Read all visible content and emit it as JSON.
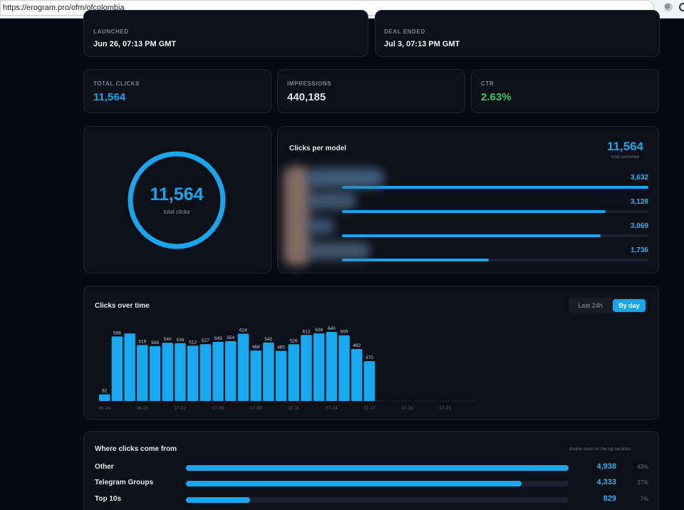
{
  "browser": {
    "url": "https://erogram.pro/ofm/ofcolombia"
  },
  "meta": {
    "launched_label": "LAUNCHED",
    "launched_value": "Jun 26, 07:13 PM GMT",
    "ended_label": "DEAL ENDED",
    "ended_value": "Jul 3, 07:13 PM GMT"
  },
  "stats": {
    "clicks_label": "TOTAL CLICKS",
    "clicks_value": "11,564",
    "impressions_label": "IMPRESSIONS",
    "impressions_value": "440,185",
    "ctr_label": "CTR",
    "ctr_value": "2.63%"
  },
  "ring": {
    "value": "11,564",
    "caption": "total clicks"
  },
  "models": {
    "title": "Clicks per model",
    "total": "11,564",
    "total_caption": "total combined",
    "items": [
      {
        "value": "3,632",
        "fraction": 1.0
      },
      {
        "value": "3,128",
        "fraction": 0.861
      },
      {
        "value": "3,069",
        "fraction": 0.845
      },
      {
        "value": "1,736",
        "fraction": 0.478
      }
    ]
  },
  "timeline": {
    "title": "Clicks over time",
    "toggle": {
      "option_a": "Last 24h",
      "option_b": "By day",
      "selected": "By day"
    }
  },
  "chart_data": {
    "type": "bar",
    "categories": [
      "06-26",
      "06-27",
      "06-28",
      "06-29",
      "06-30",
      "07-01",
      "07-02",
      "07-03",
      "07-04",
      "07-05",
      "07-06",
      "07-07",
      "07-08",
      "07-09",
      "07-10",
      "07-11",
      "07-12",
      "07-13",
      "07-14",
      "07-15",
      "07-16",
      "07-17",
      "07-18",
      "07-19",
      "07-20",
      "07-21",
      "07-22",
      "07-23",
      "07-24",
      "07-25"
    ],
    "values": [
      62,
      598,
      626,
      519,
      508,
      540,
      536,
      512,
      527,
      549,
      554,
      624,
      468,
      542,
      465,
      526,
      612,
      626,
      640,
      609,
      482,
      370,
      0,
      0,
      0,
      0,
      0,
      0,
      0,
      0
    ],
    "labels": [
      "62",
      "598",
      "",
      "519",
      "508",
      "540",
      "536",
      "512",
      "527",
      "549",
      "554",
      "624",
      "468",
      "542",
      "465",
      "526",
      "612",
      "626",
      "640",
      "609",
      "482",
      "370",
      "",
      "",
      "",
      "",
      "",
      "",
      "",
      ""
    ],
    "tick_labels": [
      "06-26",
      "06-29",
      "07-02",
      "07-05",
      "07-08",
      "07-11",
      "07-14",
      "07-17",
      "07-20",
      "07-23"
    ],
    "tick_indices": [
      0,
      3,
      6,
      9,
      12,
      15,
      18,
      21,
      24,
      27
    ],
    "ylim": [
      0,
      660
    ],
    "color": "#17a8f0"
  },
  "sources": {
    "title": "Where clicks come from",
    "hint": "double down on the top sections",
    "items": [
      {
        "label": "Other",
        "value": "4,938",
        "pct": "43%",
        "fraction": 1.0
      },
      {
        "label": "Telegram Groups",
        "value": "4,333",
        "pct": "37%",
        "fraction": 0.877
      },
      {
        "label": "Top 10s",
        "value": "829",
        "pct": "7%",
        "fraction": 0.168
      }
    ]
  }
}
